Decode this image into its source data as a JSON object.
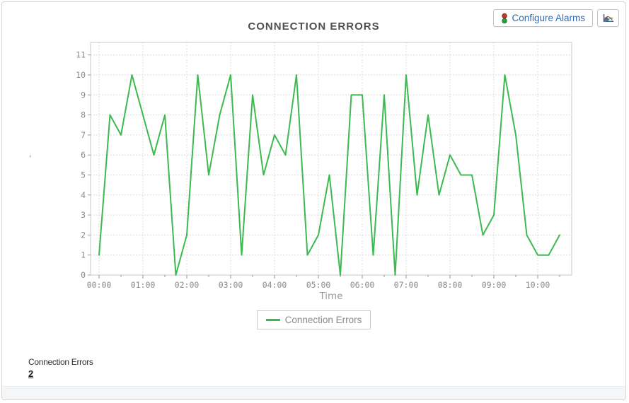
{
  "toolbar": {
    "configure_alarms_label": "Configure Alarms"
  },
  "chart_data": {
    "type": "line",
    "title": "CONNECTION ERRORS",
    "xlabel": "Time",
    "ylabel": "'",
    "ylim": [
      0,
      11
    ],
    "yticks": [
      0,
      1,
      2,
      3,
      4,
      5,
      6,
      7,
      8,
      9,
      10,
      11
    ],
    "xtick_labels": [
      "00:00",
      "01:00",
      "02:00",
      "03:00",
      "04:00",
      "05:00",
      "06:00",
      "07:00",
      "08:00",
      "09:00",
      "10:00"
    ],
    "grid": true,
    "legend_position": "bottom",
    "series": [
      {
        "name": "Connection Errors",
        "color": "#3cba50",
        "x": [
          "00:00",
          "00:15",
          "00:30",
          "00:45",
          "01:00",
          "01:15",
          "01:30",
          "01:45",
          "02:00",
          "02:15",
          "02:30",
          "02:45",
          "03:00",
          "03:15",
          "03:30",
          "03:45",
          "04:00",
          "04:15",
          "04:30",
          "04:45",
          "05:00",
          "05:15",
          "05:30",
          "05:45",
          "06:00",
          "06:15",
          "06:30",
          "06:45",
          "07:00",
          "07:15",
          "07:30",
          "07:45",
          "08:00",
          "08:15",
          "08:30",
          "08:45",
          "09:00",
          "09:15",
          "09:30",
          "09:45",
          "10:00",
          "10:15",
          "10:30"
        ],
        "values": [
          1,
          8,
          7,
          10,
          8,
          6,
          8,
          0,
          2,
          10,
          5,
          8,
          10,
          1,
          9,
          5,
          7,
          6,
          10,
          1,
          2,
          5,
          0,
          9,
          9,
          1,
          9,
          0,
          10,
          4,
          8,
          4,
          6,
          5,
          5,
          2,
          3,
          10,
          7,
          2,
          1,
          1,
          2
        ]
      }
    ]
  },
  "legend": {
    "label": "Connection Errors",
    "swatch_color": "#3cba50"
  },
  "summary": {
    "label": "Connection Errors",
    "value": "2"
  },
  "colors": {
    "line_green": "#3cba50",
    "button_text_blue": "#2f6cb3",
    "grid_gray": "#dcdcdc",
    "axis_text_gray": "#8a8a8a",
    "title_gray": "#4f4f4f"
  }
}
